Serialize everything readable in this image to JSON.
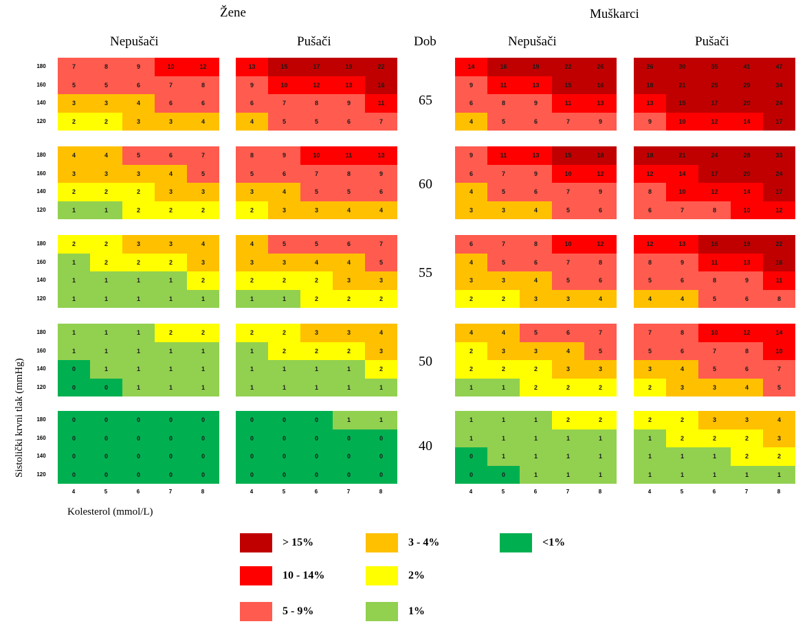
{
  "chart_data": {
    "type": "heatmap",
    "genders": [
      {
        "label": "Žene",
        "groups": [
          "Nepušači",
          "Pušači"
        ]
      },
      {
        "label": "Muškarci",
        "groups": [
          "Nepušači",
          "Pušači"
        ]
      }
    ],
    "age_header": "Dob",
    "ages": [
      "65",
      "60",
      "55",
      "50",
      "40"
    ],
    "x_ticks": [
      "4",
      "5",
      "6",
      "7",
      "8"
    ],
    "y_ticks": [
      "180",
      "160",
      "140",
      "120"
    ],
    "xlabel": "Kolesterol (mmol/L)",
    "ylabel": "Sistolički krvni tlak (mmHg)",
    "panels": {
      "zene_nepusaci": [
        [
          [
            7,
            8,
            9,
            10,
            12
          ],
          [
            5,
            5,
            6,
            7,
            8
          ],
          [
            3,
            3,
            4,
            6,
            6
          ],
          [
            2,
            2,
            3,
            3,
            4
          ]
        ],
        [
          [
            4,
            4,
            5,
            6,
            7
          ],
          [
            3,
            3,
            3,
            4,
            5
          ],
          [
            2,
            2,
            2,
            3,
            3
          ],
          [
            1,
            1,
            2,
            2,
            2
          ]
        ],
        [
          [
            2,
            2,
            3,
            3,
            4
          ],
          [
            1,
            2,
            2,
            2,
            3
          ],
          [
            1,
            1,
            1,
            1,
            2
          ],
          [
            1,
            1,
            1,
            1,
            1
          ]
        ],
        [
          [
            1,
            1,
            1,
            2,
            2
          ],
          [
            1,
            1,
            1,
            1,
            1
          ],
          [
            0,
            1,
            1,
            1,
            1
          ],
          [
            0,
            0,
            1,
            1,
            1
          ]
        ],
        [
          [
            0,
            0,
            0,
            0,
            0
          ],
          [
            0,
            0,
            0,
            0,
            0
          ],
          [
            0,
            0,
            0,
            0,
            0
          ],
          [
            0,
            0,
            0,
            0,
            0
          ]
        ]
      ],
      "zene_pusaci": [
        [
          [
            13,
            15,
            17,
            19,
            22
          ],
          [
            9,
            10,
            12,
            13,
            16
          ],
          [
            6,
            7,
            8,
            9,
            11
          ],
          [
            4,
            5,
            5,
            6,
            7
          ]
        ],
        [
          [
            8,
            9,
            10,
            11,
            13
          ],
          [
            5,
            6,
            7,
            8,
            9
          ],
          [
            3,
            4,
            5,
            5,
            6
          ],
          [
            2,
            3,
            3,
            4,
            4
          ]
        ],
        [
          [
            4,
            5,
            5,
            6,
            7
          ],
          [
            3,
            3,
            4,
            4,
            5
          ],
          [
            2,
            2,
            2,
            3,
            3
          ],
          [
            1,
            1,
            2,
            2,
            2
          ]
        ],
        [
          [
            2,
            2,
            3,
            3,
            4
          ],
          [
            1,
            2,
            2,
            2,
            3
          ],
          [
            1,
            1,
            1,
            1,
            2
          ],
          [
            1,
            1,
            1,
            1,
            1
          ]
        ],
        [
          [
            0,
            0,
            0,
            1,
            1
          ],
          [
            0,
            0,
            0,
            0,
            0
          ],
          [
            0,
            0,
            0,
            0,
            0
          ],
          [
            0,
            0,
            0,
            0,
            0
          ]
        ]
      ],
      "muskarci_nepusaci": [
        [
          [
            14,
            16,
            19,
            22,
            26
          ],
          [
            9,
            11,
            13,
            15,
            16
          ],
          [
            6,
            8,
            9,
            11,
            13
          ],
          [
            4,
            5,
            6,
            7,
            9
          ]
        ],
        [
          [
            9,
            11,
            13,
            15,
            18
          ],
          [
            6,
            7,
            9,
            10,
            12
          ],
          [
            4,
            5,
            6,
            7,
            9
          ],
          [
            3,
            3,
            4,
            5,
            6
          ]
        ],
        [
          [
            6,
            7,
            8,
            10,
            12
          ],
          [
            4,
            5,
            6,
            7,
            8
          ],
          [
            3,
            3,
            4,
            5,
            6
          ],
          [
            2,
            2,
            3,
            3,
            4
          ]
        ],
        [
          [
            4,
            4,
            5,
            6,
            7
          ],
          [
            2,
            3,
            3,
            4,
            5
          ],
          [
            2,
            2,
            2,
            3,
            3
          ],
          [
            1,
            1,
            2,
            2,
            2
          ]
        ],
        [
          [
            1,
            1,
            1,
            2,
            2
          ],
          [
            1,
            1,
            1,
            1,
            1
          ],
          [
            0,
            1,
            1,
            1,
            1
          ],
          [
            0,
            0,
            1,
            1,
            1
          ]
        ]
      ],
      "muskarci_pusaci": [
        [
          [
            26,
            30,
            35,
            41,
            47
          ],
          [
            18,
            21,
            25,
            29,
            34
          ],
          [
            13,
            15,
            17,
            20,
            24
          ],
          [
            9,
            10,
            12,
            14,
            17
          ]
        ],
        [
          [
            18,
            21,
            24,
            28,
            33
          ],
          [
            12,
            14,
            17,
            20,
            24
          ],
          [
            8,
            10,
            12,
            14,
            17
          ],
          [
            6,
            7,
            8,
            10,
            12
          ]
        ],
        [
          [
            12,
            13,
            16,
            19,
            22
          ],
          [
            8,
            9,
            11,
            13,
            16
          ],
          [
            5,
            6,
            8,
            9,
            11
          ],
          [
            4,
            4,
            5,
            6,
            8
          ]
        ],
        [
          [
            7,
            8,
            10,
            12,
            14
          ],
          [
            5,
            6,
            7,
            8,
            10
          ],
          [
            3,
            4,
            5,
            6,
            7
          ],
          [
            2,
            3,
            3,
            4,
            5
          ]
        ],
        [
          [
            2,
            2,
            3,
            3,
            4
          ],
          [
            1,
            2,
            2,
            2,
            3
          ],
          [
            1,
            1,
            1,
            2,
            2
          ],
          [
            1,
            1,
            1,
            1,
            1
          ]
        ]
      ]
    },
    "legend": [
      {
        "label": "> 15%",
        "color": "#C00000"
      },
      {
        "label": "10 - 14%",
        "color": "#FF0000"
      },
      {
        "label": "5 - 9%",
        "color": "#FF5B4F"
      },
      {
        "label": "3 - 4%",
        "color": "#FFC000"
      },
      {
        "label": "2%",
        "color": "#FFFF00"
      },
      {
        "label": "1%",
        "color": "#92D050"
      },
      {
        "label": "<1%",
        "color": "#00B050"
      }
    ]
  }
}
